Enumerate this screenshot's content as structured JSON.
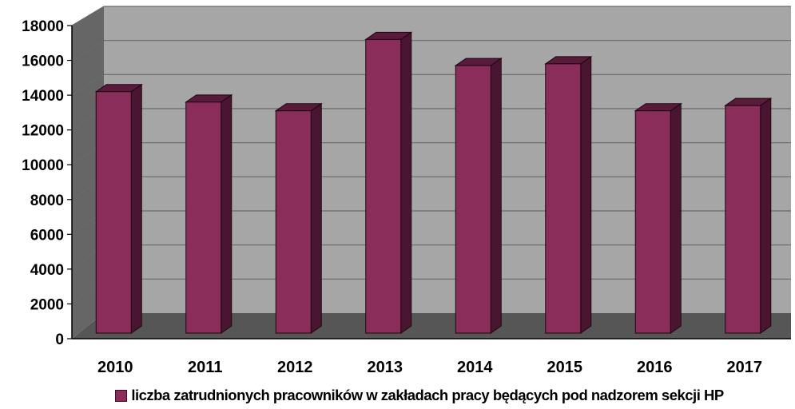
{
  "chart_data": {
    "type": "bar",
    "categories": [
      "2010",
      "2011",
      "2012",
      "2013",
      "2014",
      "2015",
      "2016",
      "2017"
    ],
    "series": [
      {
        "name": "liczba zatrudnionych pracowników w zakładach pracy będących pod nadzorem sekcji HP",
        "values": [
          14200,
          13600,
          13100,
          17200,
          15700,
          15800,
          13100,
          13400
        ],
        "color": "#8b2d5a"
      }
    ],
    "title": "",
    "xlabel": "",
    "ylabel": "",
    "ylim": [
      0,
      18000
    ],
    "yticks": [
      "0",
      "2000",
      "4000",
      "6000",
      "8000",
      "10000",
      "12000",
      "14000",
      "16000",
      "18000"
    ],
    "grid": true,
    "legend": "bottom",
    "style": "3d-column",
    "colors": {
      "back_wall": "#a6a6a6",
      "side_wall": "#666666",
      "floor": "#565656",
      "gridline": "#6a6a6a",
      "bar_front": "#8b2d5a",
      "bar_top": "#5a1a3a",
      "bar_side": "#4a1530"
    }
  }
}
